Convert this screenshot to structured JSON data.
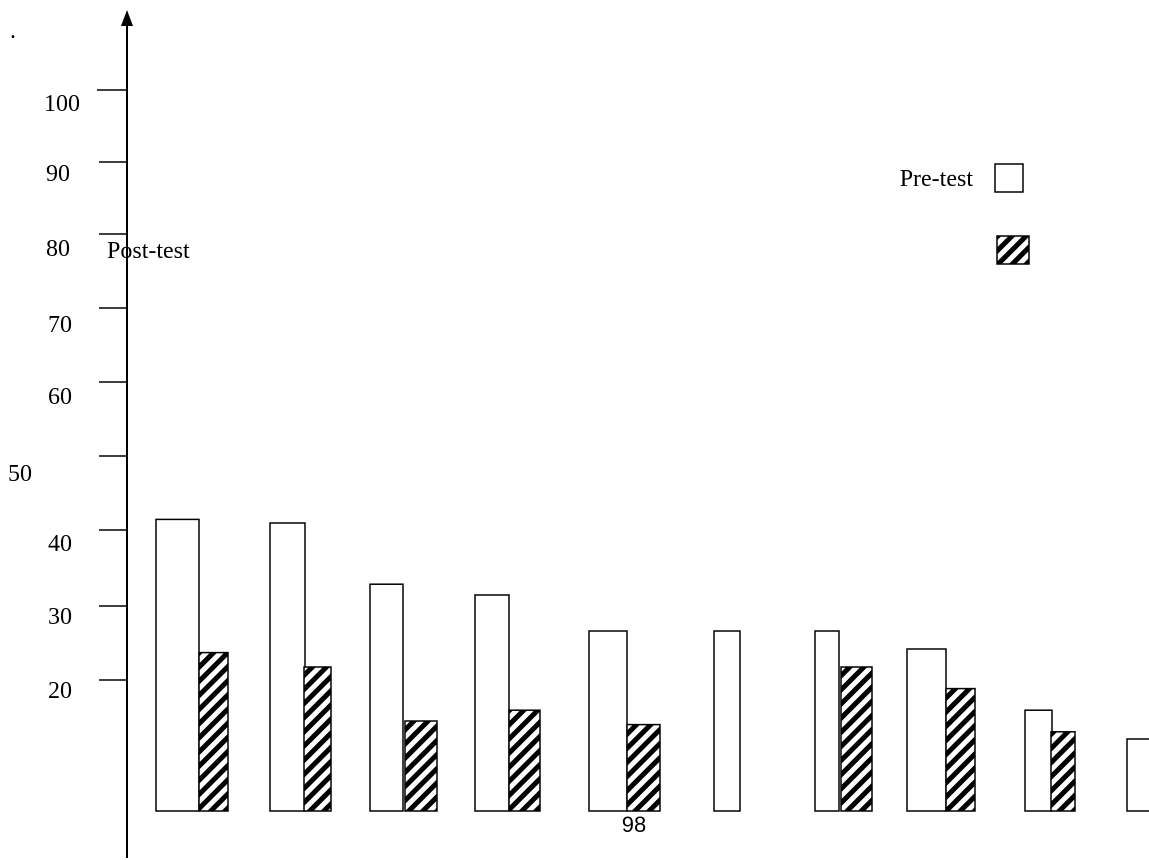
{
  "corner_mark": ".",
  "page_number": "98",
  "chart_data": {
    "type": "bar",
    "title": "",
    "xlabel": "",
    "ylabel": "",
    "ylim": [
      0,
      100
    ],
    "yticks": [
      {
        "value": 100,
        "label": "100"
      },
      {
        "value": 90,
        "label": "90"
      },
      {
        "value": 80,
        "label": "80"
      },
      {
        "value": 70,
        "label": "70"
      },
      {
        "value": 60,
        "label": "60"
      },
      {
        "value": 50,
        "label": "50"
      },
      {
        "value": 40,
        "label": "40"
      },
      {
        "value": 30,
        "label": "30"
      },
      {
        "value": 20,
        "label": "20"
      }
    ],
    "categories": [
      "",
      "",
      "",
      "",
      "",
      "",
      "",
      "",
      "",
      ""
    ],
    "series": [
      {
        "name": "Pre-test",
        "fill": "none",
        "values": [
          40.5,
          40,
          31.5,
          30,
          25,
          25,
          25,
          22.5,
          14,
          10
        ]
      },
      {
        "name": "Post-test",
        "fill": "diagonal-hatch",
        "values": [
          22,
          20,
          12.5,
          14,
          12,
          null,
          20,
          17,
          11,
          null
        ]
      }
    ],
    "legend": {
      "position": "top-right",
      "entries": [
        {
          "label": "Pre-test",
          "swatch": "empty"
        },
        {
          "label": "Post-test",
          "swatch": "hatched"
        }
      ]
    },
    "grid": false,
    "colors": {
      "stroke": "#000000",
      "background": "#ffffff"
    }
  }
}
